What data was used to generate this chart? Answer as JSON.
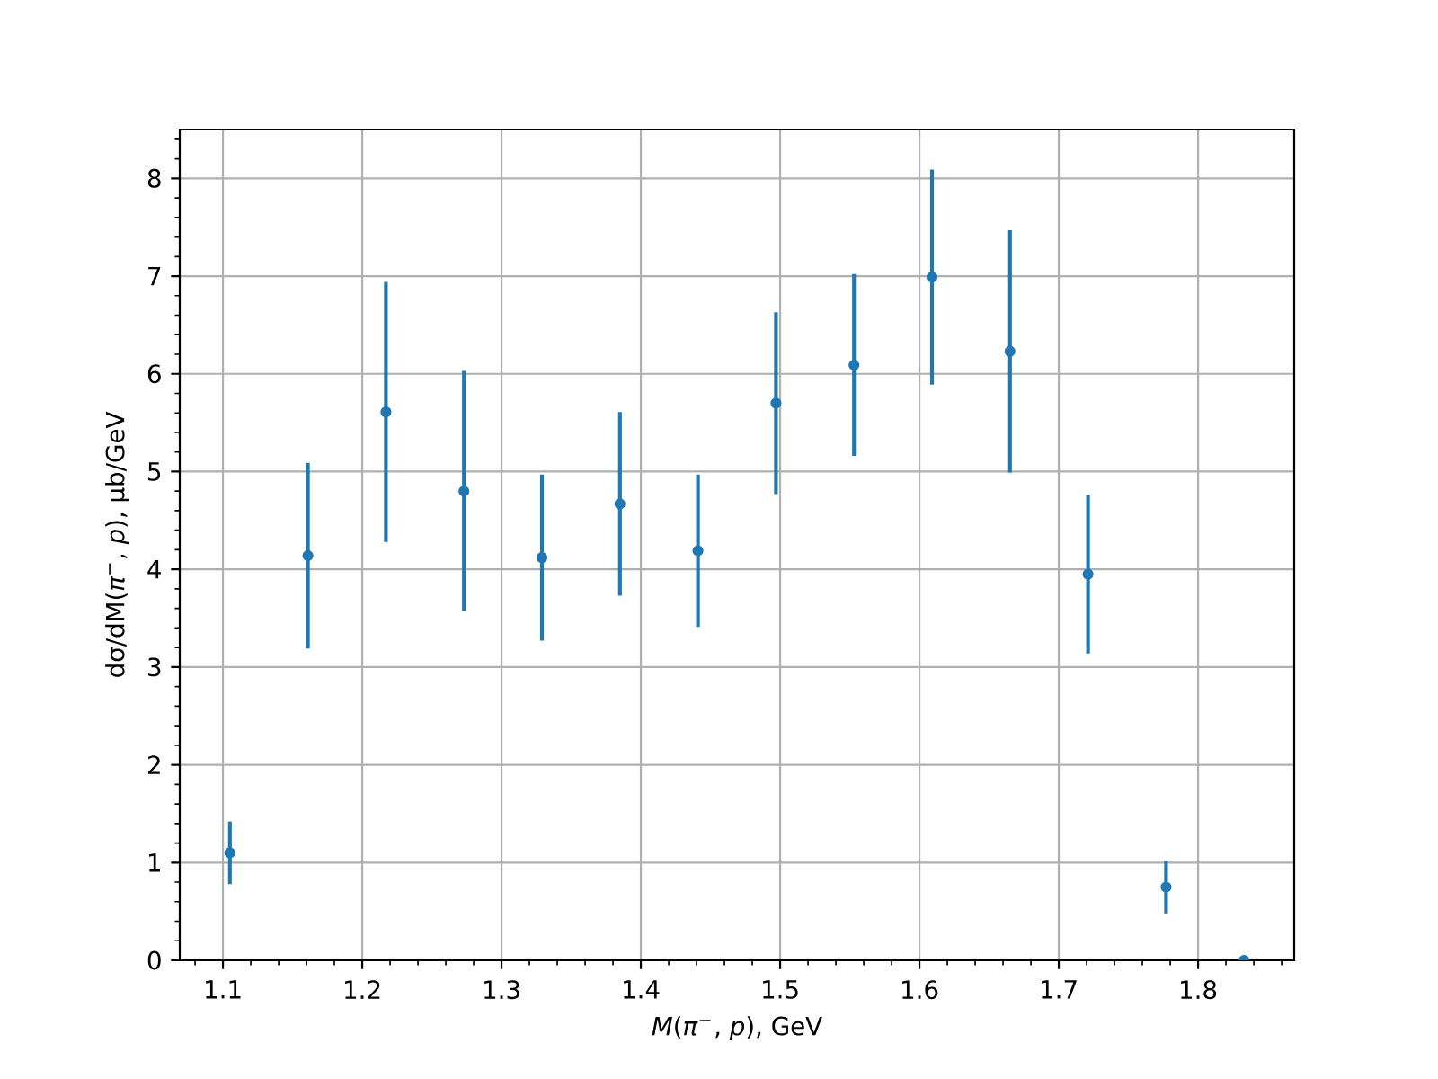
{
  "chart_data": {
    "type": "scatter",
    "xlabel": "*M*(*π*$^{−}$, *p*), GeV",
    "ylabel": "dσ/dM(*π*$^{−}$, *p*), μb/GeV",
    "x": [
      1.105,
      1.161,
      1.217,
      1.273,
      1.329,
      1.385,
      1.441,
      1.497,
      1.553,
      1.609,
      1.665,
      1.721,
      1.777,
      1.833
    ],
    "values": [
      1.1,
      4.14,
      5.61,
      4.8,
      4.12,
      4.67,
      4.19,
      5.7,
      6.09,
      6.99,
      6.23,
      3.95,
      0.75,
      0
    ],
    "errors": [
      0.32,
      0.95,
      1.33,
      1.23,
      0.85,
      0.94,
      0.78,
      0.93,
      0.93,
      1.1,
      1.24,
      0.81,
      0.27,
      null
    ],
    "color": "#1f77b4",
    "marker": "circle",
    "grid": true,
    "xlim": [
      1.069,
      1.869
    ],
    "ylim": [
      0,
      8.5
    ],
    "xticks": [
      {
        "value": 1.08,
        "label": null
      },
      1.1,
      {
        "value": 1.12,
        "label": null
      },
      {
        "value": 1.14,
        "label": null
      },
      {
        "value": 1.16,
        "label": null
      },
      {
        "value": 1.18,
        "label": null
      },
      1.2,
      {
        "value": 1.22,
        "label": null
      },
      {
        "value": 1.24,
        "label": null
      },
      {
        "value": 1.26,
        "label": null
      },
      {
        "value": 1.28,
        "label": null
      },
      1.3,
      {
        "value": 1.32,
        "label": null
      },
      {
        "value": 1.34,
        "label": null
      },
      {
        "value": 1.36,
        "label": null
      },
      {
        "value": 1.38,
        "label": null
      },
      1.4,
      {
        "value": 1.42,
        "label": null
      },
      {
        "value": 1.44,
        "label": null
      },
      {
        "value": 1.46,
        "label": null
      },
      {
        "value": 1.48,
        "label": null
      },
      1.5,
      {
        "value": 1.52,
        "label": null
      },
      {
        "value": 1.54,
        "label": null
      },
      {
        "value": 1.56,
        "label": null
      },
      {
        "value": 1.58,
        "label": null
      },
      1.6,
      {
        "value": 1.62,
        "label": null
      },
      {
        "value": 1.64,
        "label": null
      },
      {
        "value": 1.66,
        "label": null
      },
      {
        "value": 1.68,
        "label": null
      },
      1.7,
      {
        "value": 1.72,
        "label": null
      },
      {
        "value": 1.74,
        "label": null
      },
      {
        "value": 1.76,
        "label": null
      },
      {
        "value": 1.78,
        "label": null
      },
      1.8,
      {
        "value": 1.82,
        "label": null
      },
      {
        "value": 1.84,
        "label": null
      },
      {
        "value": 1.86,
        "label": null
      }
    ],
    "yticks": [
      0,
      {
        "value": 0.2,
        "label": null
      },
      {
        "value": 0.4,
        "label": null
      },
      {
        "value": 0.6,
        "label": null
      },
      {
        "value": 0.8,
        "label": null
      },
      1,
      {
        "value": 1.2,
        "label": null
      },
      {
        "value": 1.4,
        "label": null
      },
      {
        "value": 1.6,
        "label": null
      },
      {
        "value": 1.8,
        "label": null
      },
      2,
      {
        "value": 2.2,
        "label": null
      },
      {
        "value": 2.4,
        "label": null
      },
      {
        "value": 2.6,
        "label": null
      },
      {
        "value": 2.8,
        "label": null
      },
      3,
      {
        "value": 3.2,
        "label": null
      },
      {
        "value": 3.4,
        "label": null
      },
      {
        "value": 3.6,
        "label": null
      },
      {
        "value": 3.8,
        "label": null
      },
      4,
      {
        "value": 4.2,
        "label": null
      },
      {
        "value": 4.4,
        "label": null
      },
      {
        "value": 4.6,
        "label": null
      },
      {
        "value": 4.8,
        "label": null
      },
      5,
      {
        "value": 5.2,
        "label": null
      },
      {
        "value": 5.4,
        "label": null
      },
      {
        "value": 5.6,
        "label": null
      },
      {
        "value": 5.8,
        "label": null
      },
      6,
      {
        "value": 6.2,
        "label": null
      },
      {
        "value": 6.4,
        "label": null
      },
      {
        "value": 6.6,
        "label": null
      },
      {
        "value": 6.8,
        "label": null
      },
      7,
      {
        "value": 7.2,
        "label": null
      },
      {
        "value": 7.4,
        "label": null
      },
      {
        "value": 7.6,
        "label": null
      },
      {
        "value": 7.8,
        "label": null
      },
      8,
      {
        "value": 8.2,
        "label": null
      },
      {
        "value": 8.4,
        "label": null
      }
    ]
  }
}
